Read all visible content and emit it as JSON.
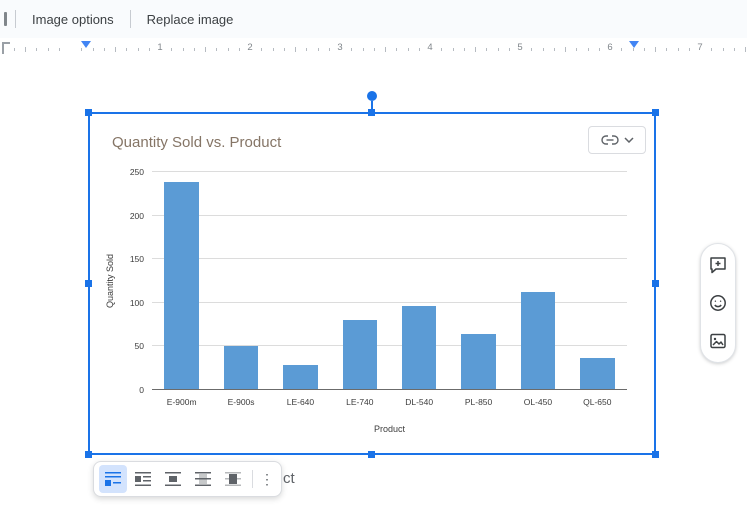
{
  "toolbar": {
    "items": [
      {
        "label": "Image options"
      },
      {
        "label": "Replace image"
      }
    ]
  },
  "ruler": {
    "numbers": [
      "1",
      "2",
      "3",
      "4",
      "5",
      "6",
      "7"
    ]
  },
  "chart_data": {
    "type": "bar",
    "title": "Quantity Sold vs. Product",
    "categories": [
      "E-900m",
      "E-900s",
      "LE-640",
      "LE-740",
      "DL-540",
      "PL-850",
      "OL-450",
      "QL-650"
    ],
    "values": [
      238,
      50,
      29,
      80,
      96,
      64,
      112,
      37
    ],
    "xlabel": "Product",
    "ylabel": "Quantity Sold",
    "ylim": [
      0,
      250
    ],
    "yticks": [
      0,
      50,
      100,
      150,
      200,
      250
    ],
    "grid": true,
    "legend": "none",
    "bar_color": "#5b9bd5"
  },
  "linked_chart": {
    "link_icon": "link-icon",
    "chevron_icon": "chevron-down-icon"
  },
  "side_panel": {
    "buttons": [
      {
        "name": "add-comment",
        "icon": "comment-add-icon"
      },
      {
        "name": "add-emoji-reaction",
        "icon": "emoji-icon"
      },
      {
        "name": "edit-image",
        "icon": "image-icon"
      }
    ]
  },
  "wrap_toolbar": {
    "options": [
      {
        "name": "in-line",
        "icon": "wrap-inline-icon",
        "selected": true
      },
      {
        "name": "wrap-text",
        "icon": "wrap-text-icon",
        "selected": false
      },
      {
        "name": "break-text",
        "icon": "break-text-icon",
        "selected": false
      },
      {
        "name": "behind-text",
        "icon": "behind-text-icon",
        "selected": false
      },
      {
        "name": "in-front-of-text",
        "icon": "front-text-icon",
        "selected": false
      }
    ],
    "more_glyph": "⋮"
  },
  "document": {
    "partial_text": "ct"
  },
  "colors": {
    "accent": "#1a73e8",
    "bar": "#5b9bd5",
    "margin_marker": "#4285f4"
  }
}
